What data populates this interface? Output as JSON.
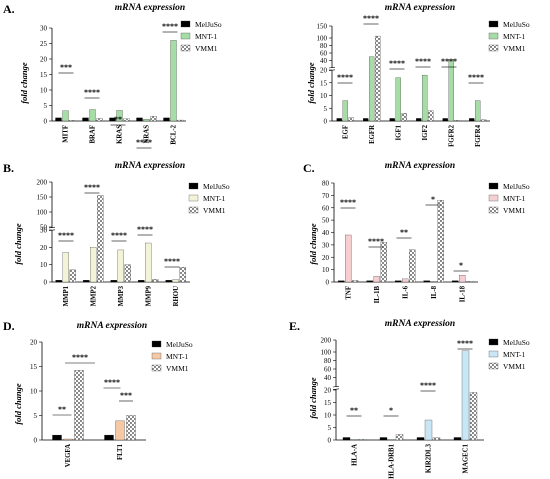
{
  "colors": {
    "black": "#000000",
    "green": "#a6dda6",
    "yellow": "#f3f3d8",
    "pink": "#f6cfd2",
    "peach": "#f6c9a6",
    "blue": "#c9e6f4"
  },
  "chart_data": [
    {
      "panel": "A.",
      "title": "mRNA expression",
      "type": "bar",
      "ylabel": "fold change",
      "yticks": [
        "0",
        "5",
        "10",
        "15",
        "20",
        "25",
        "30"
      ],
      "ylim": [
        0,
        30
      ],
      "categories": [
        "MITF",
        "BRAF",
        "KRAS",
        "NRAS",
        "BCL-2"
      ],
      "series": [
        {
          "name": "MelJuSo",
          "values": [
            1,
            1,
            1,
            1,
            1
          ]
        },
        {
          "name": "MNT-1",
          "values": [
            3.3,
            3.7,
            3.4,
            0.6,
            26
          ]
        },
        {
          "name": "VMM1",
          "values": [
            0.2,
            0.8,
            0.7,
            1.5,
            0.3
          ]
        }
      ],
      "significance": [
        "***",
        "****",
        "**",
        "****",
        "****"
      ],
      "legend": [
        "MelJuSo",
        "MNT-1",
        "VMM1"
      ],
      "legend_position": "right"
    },
    {
      "panel": "",
      "title": "mRNA expression",
      "type": "bar",
      "ylabel": "fold change",
      "axis_break": true,
      "yticks": [
        "0",
        "5",
        "10",
        "15",
        "20",
        "40",
        "60",
        "80",
        "100",
        "150"
      ],
      "ylim": [
        0,
        150
      ],
      "categories": [
        "EGF",
        "EGFR",
        "IGF1",
        "IGF2",
        "FGFR2",
        "FGFR4"
      ],
      "series": [
        {
          "name": "MelJuSo",
          "values": [
            1,
            1,
            1,
            1,
            1,
            1
          ]
        },
        {
          "name": "MNT-1",
          "values": [
            8,
            50,
            17,
            18,
            42,
            8
          ]
        },
        {
          "name": "VMM1",
          "values": [
            1.3,
            108,
            3,
            4,
            0.3,
            0.5
          ]
        }
      ],
      "significance": [
        "****",
        "****",
        "****",
        "****",
        "****",
        "****"
      ],
      "legend": [
        "MelJuSo",
        "MNT-1",
        "VMM1"
      ],
      "legend_position": "right"
    },
    {
      "panel": "B.",
      "title": "mRNA expression",
      "type": "bar",
      "ylabel": "fold change",
      "axis_break": true,
      "yticks": [
        "0",
        "10",
        "20",
        "30",
        "50",
        "100",
        "150",
        "200"
      ],
      "ylim": [
        0,
        200
      ],
      "categories": [
        "MMP1",
        "MMP2",
        "MMP3",
        "MMP9",
        "RHOU"
      ],
      "series": [
        {
          "name": "MelJuSo",
          "values": [
            1,
            1,
            1,
            1,
            1
          ]
        },
        {
          "name": "MNT-1",
          "values": [
            17,
            20,
            18.5,
            22.5,
            1.5
          ]
        },
        {
          "name": "VMM1",
          "values": [
            7,
            155,
            10,
            1.5,
            8.5
          ]
        }
      ],
      "significance": [
        "****",
        "****",
        "****",
        "****",
        "****"
      ],
      "legend": [
        "MelJuSo",
        "MNT-1",
        "VMM1"
      ],
      "legend_position": "right"
    },
    {
      "panel": "C.",
      "title": "mRNA expression",
      "type": "bar",
      "ylabel": "fold change",
      "yticks": [
        "0",
        "10",
        "20",
        "30",
        "40",
        "50",
        "60",
        "70",
        "80"
      ],
      "ylim": [
        0,
        80
      ],
      "categories": [
        "TNF",
        "IL-1B",
        "IL-6",
        "IL-8",
        "IL-18"
      ],
      "series": [
        {
          "name": "MelJuSo",
          "values": [
            1,
            1,
            1,
            1,
            1
          ]
        },
        {
          "name": "MNT-1",
          "values": [
            38,
            4.5,
            2.5,
            0.5,
            5.5
          ]
        },
        {
          "name": "VMM1",
          "values": [
            1.2,
            32,
            26,
            66,
            0.3
          ]
        }
      ],
      "significance": [
        "****",
        "****",
        "**",
        "*",
        "*"
      ],
      "legend": [
        "MelJuSo",
        "MNT-1",
        "VMM1"
      ],
      "legend_position": "right"
    },
    {
      "panel": "D.",
      "title": "mRNA expression",
      "type": "bar",
      "ylabel": "fold change",
      "yticks": [
        "0",
        "5",
        "10",
        "15",
        "20"
      ],
      "ylim": [
        0,
        20
      ],
      "categories": [
        "VEGFA",
        "FLT1"
      ],
      "series": [
        {
          "name": "MelJuSo",
          "values": [
            1,
            1
          ]
        },
        {
          "name": "MNT-1",
          "values": [
            0.2,
            3.9
          ]
        },
        {
          "name": "VMM1",
          "values": [
            14.2,
            5
          ]
        }
      ],
      "significance": [
        "**",
        "****",
        "****",
        "***"
      ],
      "legend": [
        "MelJuSo",
        "MNT-1",
        "VMM1"
      ],
      "legend_position": "right"
    },
    {
      "panel": "E.",
      "title": "mRNA expression",
      "type": "bar",
      "ylabel": "fold change",
      "axis_break": true,
      "yticks": [
        "0",
        "5",
        "10",
        "15",
        "20",
        "40",
        "60",
        "80",
        "100",
        "200"
      ],
      "ylim": [
        0,
        200
      ],
      "categories": [
        "HLA-A",
        "HLA-DRB1",
        "KIR2DL3",
        "MAGEC1"
      ],
      "series": [
        {
          "name": "MelJuSo",
          "values": [
            1,
            1,
            1,
            1
          ]
        },
        {
          "name": "MNT-1",
          "values": [
            0.2,
            0.1,
            8,
            110
          ]
        },
        {
          "name": "VMM1",
          "values": [
            0.1,
            2.2,
            0.9,
            19
          ]
        }
      ],
      "significance": [
        "**",
        "*",
        "****",
        "****"
      ],
      "legend": [
        "MelJuSo",
        "MNT-1",
        "VMM1"
      ],
      "legend_position": "right"
    }
  ]
}
